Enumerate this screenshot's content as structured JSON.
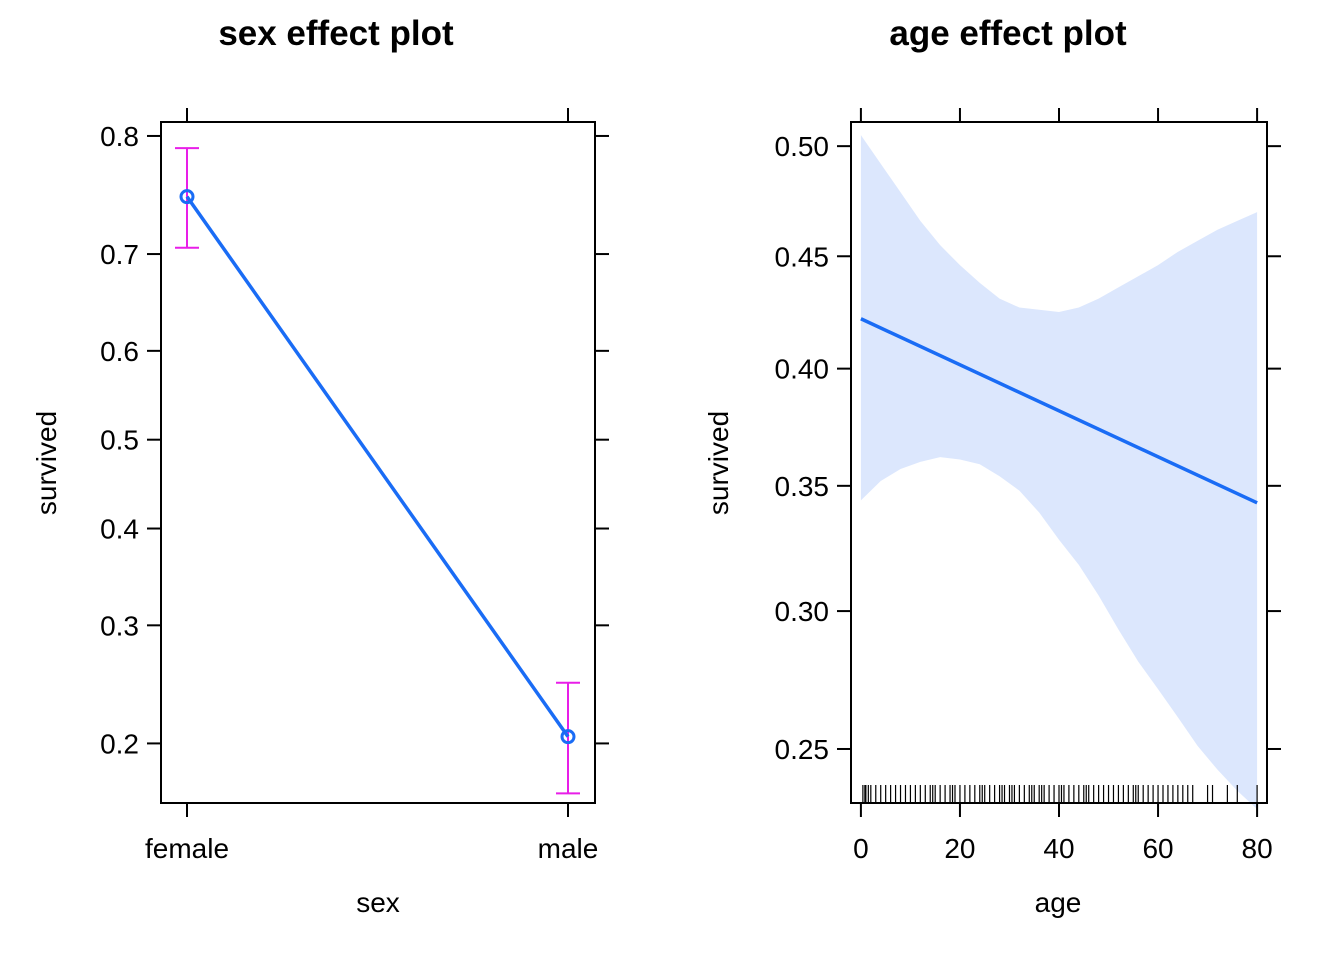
{
  "chart_data": [
    {
      "type": "line",
      "title": "sex effect plot",
      "xlabel": "sex",
      "ylabel": "survived",
      "categories": [
        "female",
        "male"
      ],
      "ylim": [
        0.16,
        0.81
      ],
      "y_scale": "logit",
      "y_ticks": [
        0.2,
        0.3,
        0.4,
        0.5,
        0.6,
        0.7,
        0.8
      ],
      "y_tick_labels": [
        "0.2",
        "0.3",
        "0.4",
        "0.5",
        "0.6",
        "0.7",
        "0.8"
      ],
      "series": [
        {
          "values": [
            0.752,
            0.205
          ],
          "lower": [
            0.706,
            0.166
          ],
          "upper": [
            0.791,
            0.248
          ]
        }
      ],
      "grid": false,
      "colors": {
        "line": "#1a6cf5",
        "error_bars": "#e81ee8"
      }
    },
    {
      "type": "line",
      "title": "age effect plot",
      "xlabel": "age",
      "ylabel": "survived",
      "xlim": [
        -2,
        82
      ],
      "ylim": [
        0.232,
        0.511
      ],
      "y_scale": "logit",
      "x_ticks": [
        0,
        20,
        40,
        60,
        80
      ],
      "x_tick_labels": [
        "0",
        "20",
        "40",
        "60",
        "80"
      ],
      "y_ticks": [
        0.25,
        0.3,
        0.35,
        0.4,
        0.45,
        0.5
      ],
      "y_tick_labels": [
        "0.25",
        "0.30",
        "0.35",
        "0.40",
        "0.45",
        "0.50"
      ],
      "series": [
        {
          "x": [
            0,
            80
          ],
          "values": [
            0.422,
            0.343
          ]
        }
      ],
      "band": {
        "x": [
          0,
          4,
          8,
          12,
          16,
          20,
          24,
          28,
          32,
          36,
          40,
          44,
          48,
          52,
          56,
          60,
          64,
          68,
          72,
          76,
          80
        ],
        "upper": [
          0.505,
          0.492,
          0.479,
          0.466,
          0.455,
          0.446,
          0.438,
          0.431,
          0.427,
          0.426,
          0.425,
          0.427,
          0.431,
          0.436,
          0.441,
          0.446,
          0.452,
          0.457,
          0.462,
          0.466,
          0.47
        ],
        "lower": [
          0.344,
          0.352,
          0.357,
          0.36,
          0.362,
          0.361,
          0.359,
          0.354,
          0.348,
          0.339,
          0.328,
          0.318,
          0.306,
          0.293,
          0.281,
          0.271,
          0.261,
          0.251,
          0.243,
          0.236,
          0.23
        ]
      },
      "rug": [
        0.4,
        0.8,
        1,
        1.5,
        2,
        3,
        4,
        5,
        6,
        7,
        8,
        9,
        10,
        11,
        12,
        13,
        14,
        14.5,
        15,
        16,
        17,
        18,
        18.5,
        19,
        20,
        21,
        22,
        23,
        24,
        24.5,
        25,
        26,
        27,
        28,
        28.5,
        29,
        30,
        30.5,
        31,
        32,
        33,
        34,
        34.5,
        35,
        36,
        36.5,
        37,
        38,
        39,
        40,
        40.5,
        41,
        42,
        43,
        44,
        45,
        45.5,
        46,
        47,
        48,
        49,
        50,
        51,
        52,
        53,
        54,
        55,
        55.5,
        56,
        57,
        58,
        59,
        60,
        61,
        62,
        63,
        64,
        65,
        66,
        67,
        70,
        71,
        74,
        76,
        80
      ],
      "grid": false,
      "colors": {
        "line": "#1a6cf5",
        "band": "#dce7fd"
      }
    }
  ]
}
